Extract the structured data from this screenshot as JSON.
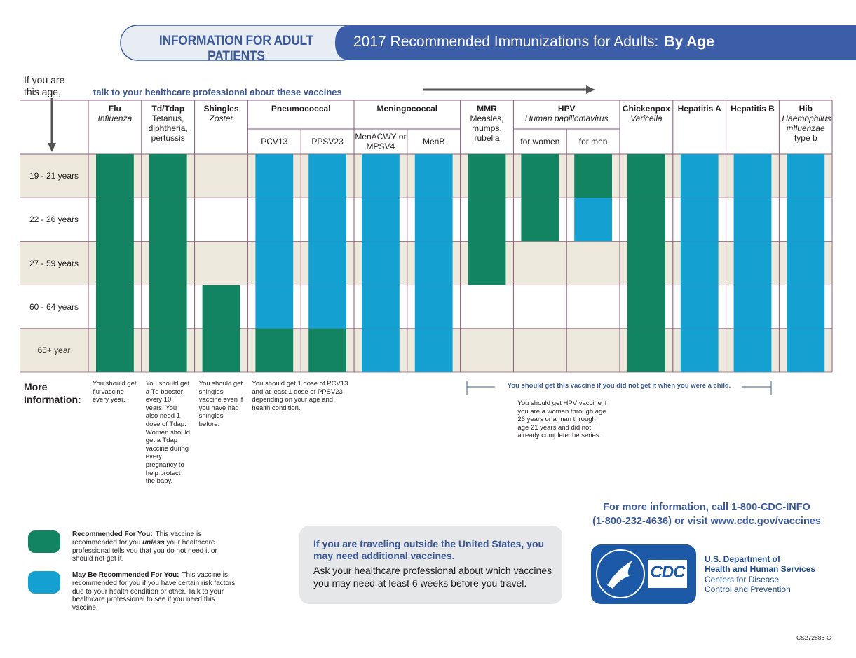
{
  "header": {
    "tab": "INFORMATION FOR ADULT PATIENTS",
    "title": "2017 Recommended Immunizations for Adults:",
    "title_bold": "By Age"
  },
  "intro": {
    "age_prompt": [
      "If you are",
      "this age,"
    ],
    "vaccine_prompt": "talk to your healthcare professional about these vaccines"
  },
  "table": {
    "ages": [
      "19 - 21 years",
      "22 - 26 years",
      "27 - 59 years",
      "60 - 64 years",
      "65+ year"
    ],
    "groups": [
      {
        "name": "Flu",
        "latin": "Influenza",
        "note": "You should get flu vaccine every year.",
        "columns": [
          {
            "cells": [
              0,
              0,
              0,
              0,
              0
            ]
          }
        ]
      },
      {
        "name": "Td/Tdap",
        "subtitle": "Tetanus, diphtheria, pertussis",
        "note": "You should get a Td booster every 10 years. You also need 1 dose of Tdap. Women should get a Tdap vaccine during every pregnancy to help protect the baby.",
        "columns": [
          {
            "cells": [
              0,
              0,
              0,
              0,
              0
            ]
          }
        ]
      },
      {
        "name": "Shingles",
        "latin": "Zoster",
        "note": "You should get shingles vaccine even if you have had shingles before.",
        "columns": [
          {
            "cells": [
              null,
              null,
              null,
              0,
              0
            ]
          }
        ]
      },
      {
        "name": "Pneumococcal",
        "note": "You should get 1 dose of PCV13 and at least 1 dose of PPSV23 depending on your age and health condition.",
        "columns": [
          {
            "name": "PCV13",
            "cells": [
              1,
              1,
              1,
              1,
              0
            ]
          },
          {
            "name": "PPSV23",
            "cells": [
              1,
              1,
              1,
              1,
              0
            ]
          }
        ]
      },
      {
        "name": "Meningococcal",
        "columns": [
          {
            "name": "MenACWY or MPSV4",
            "cells": [
              1,
              1,
              1,
              1,
              1
            ]
          },
          {
            "name": "MenB",
            "cells": [
              1,
              1,
              1,
              1,
              1
            ]
          }
        ]
      },
      {
        "name": "MMR",
        "subtitle": "Measles, mumps, rubella",
        "columns": [
          {
            "cells": [
              0,
              0,
              0,
              null,
              null
            ]
          }
        ]
      },
      {
        "name": "HPV",
        "latin": "Human papillomavirus",
        "note": "You should get HPV vaccine if you are a woman through age 26 years or a man through age 21 years and did not already complete the series.",
        "columns": [
          {
            "name": "for women",
            "cells": [
              0,
              0,
              null,
              null,
              null
            ]
          },
          {
            "name": "for men",
            "cells": [
              0,
              1,
              null,
              null,
              null
            ]
          }
        ]
      },
      {
        "name": "Chickenpox",
        "latin": "Varicella",
        "columns": [
          {
            "cells": [
              0,
              0,
              0,
              0,
              0
            ]
          }
        ]
      },
      {
        "name": "Hepatitis A",
        "columns": [
          {
            "cells": [
              1,
              1,
              1,
              1,
              1
            ]
          }
        ]
      },
      {
        "name": "Hepatitis B",
        "columns": [
          {
            "cells": [
              1,
              1,
              1,
              1,
              1
            ]
          }
        ]
      },
      {
        "name": "Hib",
        "latin": "Haemophilus influenzae",
        "subtitle": "type b",
        "columns": [
          {
            "cells": [
              1,
              1,
              1,
              1,
              1
            ]
          }
        ]
      }
    ]
  },
  "more_info": "More Information:",
  "childhood_note": "You should get this vaccine if you did not get it when you were a child.",
  "legend": [
    {
      "label": "Recommended For You:",
      "color": "#138462",
      "before": "This vaccine is recommended for you ",
      "emphasis": "unless",
      "after": " your healthcare professional tells you that you do not need it or should not get it."
    },
    {
      "label": "May Be Recommended For You:",
      "color": "#14a1d2",
      "text": "This vaccine is recommended for you if you have certain risk factors due to your health condition or other. Talk to your healthcare professional to see if you need this vaccine."
    }
  ],
  "travel": {
    "heading": "If you are traveling outside the United States, you may need additional vaccines.",
    "text": "Ask your healthcare professional about which vaccines you may need at least 6 weeks before you travel."
  },
  "contact": [
    "For more information, call 1-800-CDC-INFO",
    "(1-800-232-4636) or visit www.cdc.gov/vaccines"
  ],
  "logo": "CDC",
  "hhs": {
    "department": [
      "U.S. Department of",
      "Health and Human Services"
    ],
    "center": [
      "Centers for Disease",
      "Control and Prevention"
    ]
  },
  "code": "CS272886-G"
}
